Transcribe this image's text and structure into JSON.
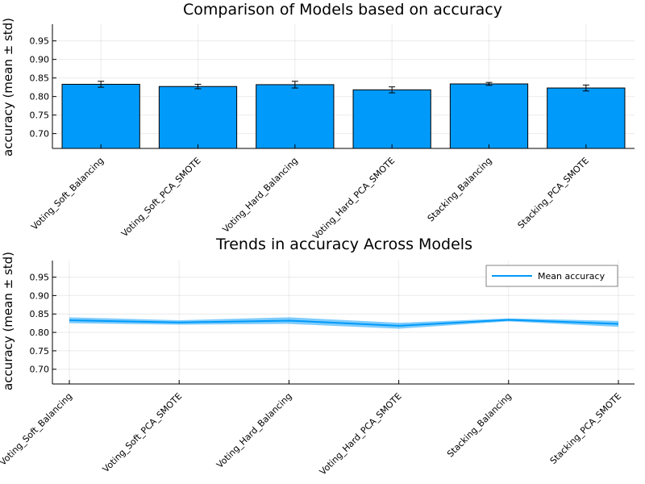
{
  "chart_data": [
    {
      "type": "bar",
      "title": "Comparison of Models based on accuracy",
      "ylabel": "accuracy (mean ± std)",
      "xlabel": "",
      "categories": [
        "Voting_Soft_Balancing",
        "Voting_Soft_PCA_SMOTE",
        "Voting_Hard_Balancing",
        "Voting_Hard_PCA_SMOTE",
        "Stacking_Balancing",
        "Stacking_PCA_SMOTE"
      ],
      "values": [
        0.833,
        0.827,
        0.832,
        0.818,
        0.834,
        0.823
      ],
      "errors": [
        0.008,
        0.006,
        0.009,
        0.008,
        0.004,
        0.008
      ],
      "ylim": [
        0.66,
        0.995
      ],
      "yticks": [
        0.7,
        0.75,
        0.8,
        0.85,
        0.9,
        0.95
      ],
      "ytick_labels": [
        "0.70",
        "0.75",
        "0.80",
        "0.85",
        "0.90",
        "0.95"
      ],
      "color": "#009AFA",
      "grid": true
    },
    {
      "type": "line",
      "title": "Trends in accuracy Across Models",
      "ylabel": "accuracy (mean ± std)",
      "xlabel": "",
      "categories": [
        "Voting_Soft_Balancing",
        "Voting_Soft_PCA_SMOTE",
        "Voting_Hard_Balancing",
        "Voting_Hard_PCA_SMOTE",
        "Stacking_Balancing",
        "Stacking_PCA_SMOTE"
      ],
      "series": [
        {
          "name": "Mean accuracy",
          "values": [
            0.833,
            0.827,
            0.832,
            0.818,
            0.834,
            0.823
          ],
          "errors": [
            0.008,
            0.006,
            0.009,
            0.008,
            0.004,
            0.008
          ]
        }
      ],
      "ylim": [
        0.66,
        0.995
      ],
      "yticks": [
        0.7,
        0.75,
        0.8,
        0.85,
        0.9,
        0.95
      ],
      "ytick_labels": [
        "0.70",
        "0.75",
        "0.80",
        "0.85",
        "0.90",
        "0.95"
      ],
      "color": "#009AFA",
      "legend": "top-right",
      "grid": true
    }
  ]
}
